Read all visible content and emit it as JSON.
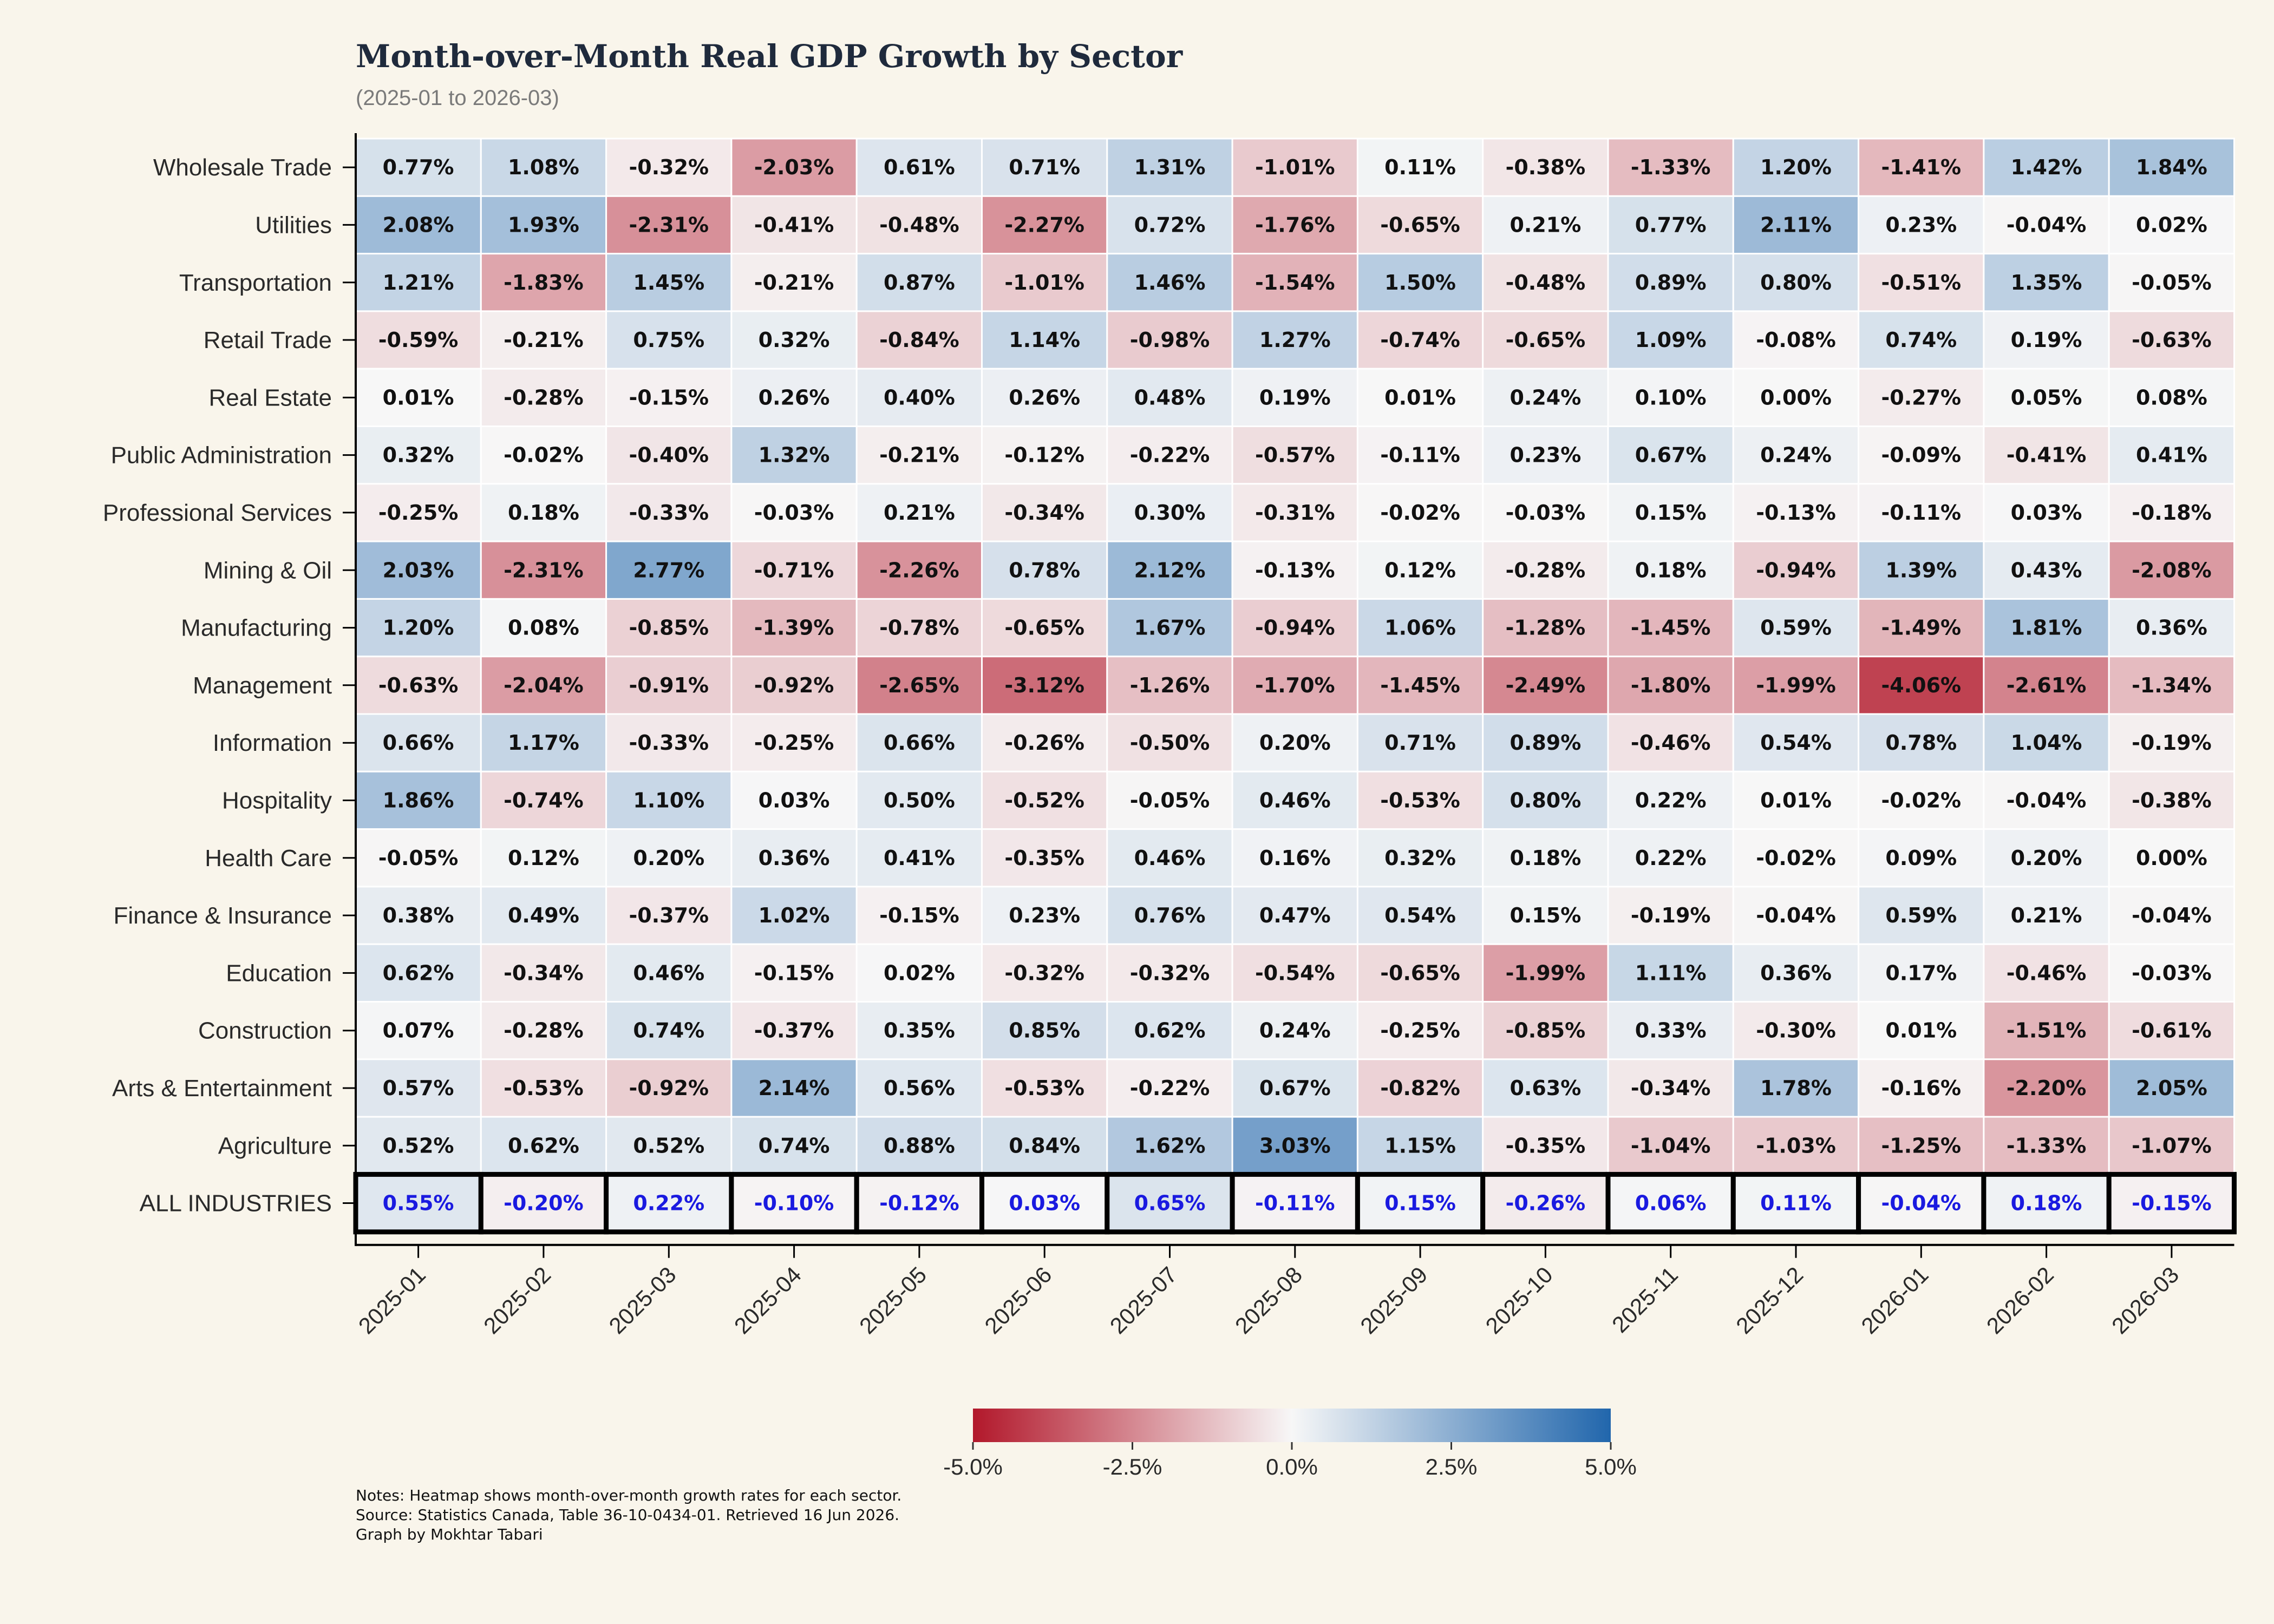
{
  "title": "Month-over-Month Real GDP Growth by Sector",
  "subtitle": "(2025-01 to 2026-03)",
  "notes": [
    "Notes: Heatmap shows month-over-month growth rates for each sector.",
    "Source: Statistics Canada, Table 36-10-0434-01. Retrieved 16 Jun 2026.",
    "Graph by Mokhtar Tabari"
  ],
  "colors": {
    "negative": "#b2182b",
    "neutral": "#f7f7f7",
    "positive": "#2166ac",
    "background": "#f9f5eb",
    "all_industries_text": "#1a1ae0"
  },
  "chart_data": {
    "type": "heatmap",
    "title": "Month-over-Month Real GDP Growth by Sector",
    "subtitle": "(2025-01 to 2026-03)",
    "x": [
      "2025-01",
      "2025-02",
      "2025-03",
      "2025-04",
      "2025-05",
      "2025-06",
      "2025-07",
      "2025-08",
      "2025-09",
      "2025-10",
      "2025-11",
      "2025-12",
      "2026-01",
      "2026-02",
      "2026-03"
    ],
    "y": [
      "Wholesale Trade",
      "Utilities",
      "Transportation",
      "Retail Trade",
      "Real Estate",
      "Public Administration",
      "Professional Services",
      "Mining & Oil",
      "Manufacturing",
      "Management",
      "Information",
      "Hospitality",
      "Health Care",
      "Finance & Insurance",
      "Education",
      "Construction",
      "Arts & Entertainment",
      "Agriculture",
      "ALL INDUSTRIES"
    ],
    "values": [
      [
        0.77,
        1.08,
        -0.32,
        -2.03,
        0.61,
        0.71,
        1.31,
        -1.01,
        0.11,
        -0.38,
        -1.33,
        1.2,
        -1.41,
        1.42,
        1.84
      ],
      [
        2.08,
        1.93,
        -2.31,
        -0.41,
        -0.48,
        -2.27,
        0.72,
        -1.76,
        -0.65,
        0.21,
        0.77,
        2.11,
        0.23,
        -0.04,
        0.02
      ],
      [
        1.21,
        -1.83,
        1.45,
        -0.21,
        0.87,
        -1.01,
        1.46,
        -1.54,
        1.5,
        -0.48,
        0.89,
        0.8,
        -0.51,
        1.35,
        -0.05
      ],
      [
        -0.59,
        -0.21,
        0.75,
        0.32,
        -0.84,
        1.14,
        -0.98,
        1.27,
        -0.74,
        -0.65,
        1.09,
        -0.08,
        0.74,
        0.19,
        -0.63
      ],
      [
        0.01,
        -0.28,
        -0.15,
        0.26,
        0.4,
        0.26,
        0.48,
        0.19,
        0.01,
        0.24,
        0.1,
        0.0,
        -0.27,
        0.05,
        0.08
      ],
      [
        0.32,
        -0.02,
        -0.4,
        1.32,
        -0.21,
        -0.12,
        -0.22,
        -0.57,
        -0.11,
        0.23,
        0.67,
        0.24,
        -0.09,
        -0.41,
        0.41
      ],
      [
        -0.25,
        0.18,
        -0.33,
        -0.03,
        0.21,
        -0.34,
        0.3,
        -0.31,
        -0.02,
        -0.03,
        0.15,
        -0.13,
        -0.11,
        0.03,
        -0.18
      ],
      [
        2.03,
        -2.31,
        2.77,
        -0.71,
        -2.26,
        0.78,
        2.12,
        -0.13,
        0.12,
        -0.28,
        0.18,
        -0.94,
        1.39,
        0.43,
        -2.08
      ],
      [
        1.2,
        0.08,
        -0.85,
        -1.39,
        -0.78,
        -0.65,
        1.67,
        -0.94,
        1.06,
        -1.28,
        -1.45,
        0.59,
        -1.49,
        1.81,
        0.36
      ],
      [
        -0.63,
        -2.04,
        -0.91,
        -0.92,
        -2.65,
        -3.12,
        -1.26,
        -1.7,
        -1.45,
        -2.49,
        -1.8,
        -1.99,
        -4.06,
        -2.61,
        -1.34
      ],
      [
        0.66,
        1.17,
        -0.33,
        -0.25,
        0.66,
        -0.26,
        -0.5,
        0.2,
        0.71,
        0.89,
        -0.46,
        0.54,
        0.78,
        1.04,
        -0.19
      ],
      [
        1.86,
        -0.74,
        1.1,
        0.03,
        0.5,
        -0.52,
        -0.05,
        0.46,
        -0.53,
        0.8,
        0.22,
        0.01,
        -0.02,
        -0.04,
        -0.38
      ],
      [
        -0.05,
        0.12,
        0.2,
        0.36,
        0.41,
        -0.35,
        0.46,
        0.16,
        0.32,
        0.18,
        0.22,
        -0.02,
        0.09,
        0.2,
        0.0
      ],
      [
        0.38,
        0.49,
        -0.37,
        1.02,
        -0.15,
        0.23,
        0.76,
        0.47,
        0.54,
        0.15,
        -0.19,
        -0.04,
        0.59,
        0.21,
        -0.04
      ],
      [
        0.62,
        -0.34,
        0.46,
        -0.15,
        0.02,
        -0.32,
        -0.32,
        -0.54,
        -0.65,
        -1.99,
        1.11,
        0.36,
        0.17,
        -0.46,
        -0.03
      ],
      [
        0.07,
        -0.28,
        0.74,
        -0.37,
        0.35,
        0.85,
        0.62,
        0.24,
        -0.25,
        -0.85,
        0.33,
        -0.3,
        0.01,
        -1.51,
        -0.61
      ],
      [
        0.57,
        -0.53,
        -0.92,
        2.14,
        0.56,
        -0.53,
        -0.22,
        0.67,
        -0.82,
        0.63,
        -0.34,
        1.78,
        -0.16,
        -2.2,
        2.05
      ],
      [
        0.52,
        0.62,
        0.52,
        0.74,
        0.88,
        0.84,
        1.62,
        3.03,
        1.15,
        -0.35,
        -1.04,
        -1.03,
        -1.25,
        -1.33,
        -1.07
      ],
      [
        0.55,
        -0.2,
        0.22,
        -0.1,
        -0.12,
        0.03,
        0.65,
        -0.11,
        0.15,
        -0.26,
        0.06,
        0.11,
        -0.04,
        0.18,
        -0.15
      ]
    ],
    "unit": "%",
    "colorbar": {
      "range": [
        -5.0,
        5.0
      ],
      "ticks": [
        -5.0,
        -2.5,
        0.0,
        2.5,
        5.0
      ],
      "tick_labels": [
        "-5.0%",
        "-2.5%",
        "0.0%",
        "2.5%",
        "5.0%"
      ],
      "placement": "bottom"
    },
    "highlighted_row": "ALL INDUSTRIES",
    "grid": false
  }
}
